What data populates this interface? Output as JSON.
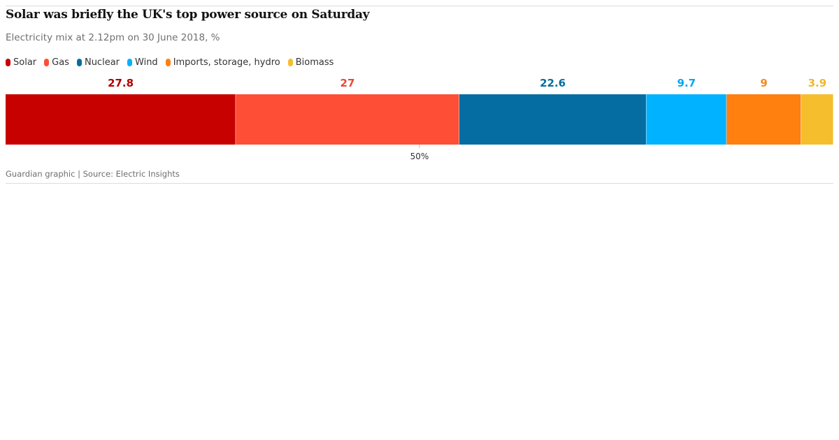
{
  "header": {
    "title": "Solar was briefly the UK's top power source on Saturday",
    "subtitle": "Electricity mix at 2.12pm on 30 June 2018, %"
  },
  "legend": {
    "items": [
      {
        "label": "Solar",
        "color": "#c70000"
      },
      {
        "label": "Gas",
        "color": "#ff4e36"
      },
      {
        "label": "Nuclear",
        "color": "#056da1"
      },
      {
        "label": "Wind",
        "color": "#00b2ff"
      },
      {
        "label": "Imports, storage, hydro",
        "color": "#ff7f0f"
      },
      {
        "label": "Biomass",
        "color": "#f5be2c"
      }
    ]
  },
  "footer": {
    "source": "Guardian graphic | Source: Electric Insights"
  },
  "chart_data": {
    "type": "bar",
    "orientation": "horizontal",
    "stacked": true,
    "title": "Solar was briefly the UK's top power source on Saturday",
    "subtitle": "Electricity mix at 2.12pm on 30 June 2018, %",
    "xlim": [
      0,
      100
    ],
    "x_ticks": [
      50
    ],
    "x_tick_labels": [
      "50%"
    ],
    "grid": false,
    "legend_position": "top-left",
    "series": [
      {
        "name": "Solar",
        "value": 27.8,
        "label": "27.8",
        "color": "#c70000",
        "label_color": "#b00000"
      },
      {
        "name": "Gas",
        "value": 27,
        "label": "27",
        "color": "#ff4e36",
        "label_color": "#e64a36"
      },
      {
        "name": "Nuclear",
        "value": 22.6,
        "label": "22.6",
        "color": "#056da1",
        "label_color": "#056da1"
      },
      {
        "name": "Wind",
        "value": 9.7,
        "label": "9.7",
        "color": "#00b2ff",
        "label_color": "#00a8f0"
      },
      {
        "name": "Imports, storage, hydro",
        "value": 9,
        "label": "9",
        "color": "#ff7f0f",
        "label_color": "#f28c1c"
      },
      {
        "name": "Biomass",
        "value": 3.9,
        "label": "3.9",
        "color": "#f5be2c",
        "label_color": "#f0b82a"
      }
    ]
  }
}
